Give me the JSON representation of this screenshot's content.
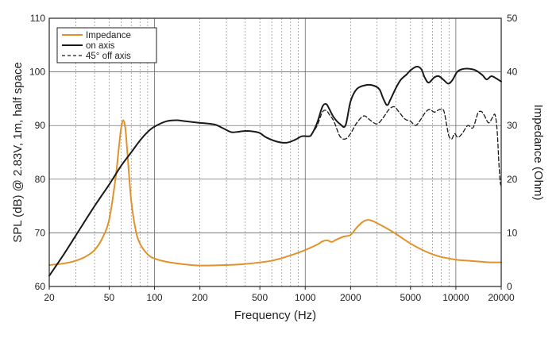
{
  "chart_data": {
    "type": "line",
    "x_scale": "log",
    "xlim": [
      20,
      20000
    ],
    "ylim_left": [
      60,
      110
    ],
    "ylim_right": [
      0,
      50
    ],
    "xlabel": "Frequency (Hz)",
    "ylabel_left": "SPL (dB) @ 2.83V, 1m, half space",
    "ylabel_right": "Impedance (Ohm)",
    "x_tick_labels": [
      "20",
      "50",
      "100",
      "200",
      "500",
      "1000",
      "2000",
      "5000",
      "10000",
      "20000"
    ],
    "y_left_tick_labels": [
      "60",
      "70",
      "80",
      "90",
      "100",
      "110"
    ],
    "y_right_tick_labels": [
      "0",
      "10",
      "20",
      "30",
      "40",
      "50"
    ],
    "grid": true,
    "legend_position": "top-left",
    "series": [
      {
        "name": "Impedance",
        "axis": "right",
        "color": "#e0922b",
        "style": "solid",
        "points": [
          [
            20,
            4.0
          ],
          [
            25,
            4.3
          ],
          [
            30,
            4.8
          ],
          [
            35,
            5.6
          ],
          [
            40,
            6.8
          ],
          [
            45,
            9.0
          ],
          [
            50,
            12.5
          ],
          [
            55,
            20.0
          ],
          [
            58,
            26.0
          ],
          [
            60,
            29.5
          ],
          [
            62,
            31.0
          ],
          [
            64,
            29.5
          ],
          [
            66,
            25.0
          ],
          [
            70,
            16.0
          ],
          [
            75,
            10.5
          ],
          [
            80,
            8.0
          ],
          [
            90,
            6.0
          ],
          [
            100,
            5.2
          ],
          [
            120,
            4.6
          ],
          [
            150,
            4.2
          ],
          [
            200,
            3.9
          ],
          [
            300,
            4.0
          ],
          [
            400,
            4.2
          ],
          [
            600,
            4.8
          ],
          [
            800,
            5.8
          ],
          [
            1000,
            6.8
          ],
          [
            1200,
            7.8
          ],
          [
            1300,
            8.4
          ],
          [
            1400,
            8.6
          ],
          [
            1500,
            8.3
          ],
          [
            1600,
            8.7
          ],
          [
            1800,
            9.3
          ],
          [
            2000,
            9.6
          ],
          [
            2200,
            11.0
          ],
          [
            2400,
            12.0
          ],
          [
            2600,
            12.4
          ],
          [
            2800,
            12.2
          ],
          [
            3000,
            11.8
          ],
          [
            3500,
            10.8
          ],
          [
            4000,
            9.8
          ],
          [
            5000,
            8.0
          ],
          [
            6000,
            6.8
          ],
          [
            7000,
            6.0
          ],
          [
            8000,
            5.5
          ],
          [
            10000,
            5.0
          ],
          [
            12000,
            4.8
          ],
          [
            15000,
            4.6
          ],
          [
            17000,
            4.5
          ],
          [
            20000,
            4.5
          ]
        ]
      },
      {
        "name": "on axis",
        "axis": "left",
        "color": "#1a1a1a",
        "style": "solid",
        "points": [
          [
            20,
            62.0
          ],
          [
            25,
            66.0
          ],
          [
            30,
            69.5
          ],
          [
            40,
            75.0
          ],
          [
            50,
            79.0
          ],
          [
            60,
            82.5
          ],
          [
            70,
            85.0
          ],
          [
            80,
            87.2
          ],
          [
            90,
            88.8
          ],
          [
            100,
            89.8
          ],
          [
            120,
            90.8
          ],
          [
            140,
            91.0
          ],
          [
            160,
            90.8
          ],
          [
            200,
            90.5
          ],
          [
            250,
            90.2
          ],
          [
            280,
            89.6
          ],
          [
            320,
            88.8
          ],
          [
            350,
            88.8
          ],
          [
            400,
            89.0
          ],
          [
            450,
            88.9
          ],
          [
            500,
            88.6
          ],
          [
            550,
            87.8
          ],
          [
            650,
            87.0
          ],
          [
            750,
            86.8
          ],
          [
            850,
            87.3
          ],
          [
            950,
            88.0
          ],
          [
            1050,
            88.0
          ],
          [
            1100,
            88.3
          ],
          [
            1200,
            90.5
          ],
          [
            1300,
            93.5
          ],
          [
            1380,
            94.0
          ],
          [
            1450,
            93.0
          ],
          [
            1550,
            91.5
          ],
          [
            1700,
            90.3
          ],
          [
            1850,
            90.0
          ],
          [
            2000,
            94.5
          ],
          [
            2200,
            96.8
          ],
          [
            2500,
            97.5
          ],
          [
            2800,
            97.5
          ],
          [
            3100,
            96.8
          ],
          [
            3300,
            95.0
          ],
          [
            3500,
            93.8
          ],
          [
            3700,
            95.0
          ],
          [
            4000,
            97.0
          ],
          [
            4300,
            98.5
          ],
          [
            4700,
            99.5
          ],
          [
            5000,
            100.3
          ],
          [
            5500,
            101.0
          ],
          [
            5900,
            100.5
          ],
          [
            6200,
            99.0
          ],
          [
            6600,
            98.0
          ],
          [
            7200,
            99.0
          ],
          [
            7700,
            99.2
          ],
          [
            8300,
            98.5
          ],
          [
            8900,
            97.8
          ],
          [
            9500,
            98.5
          ],
          [
            10200,
            100.0
          ],
          [
            11000,
            100.5
          ],
          [
            12000,
            100.6
          ],
          [
            13500,
            100.3
          ],
          [
            15000,
            99.4
          ],
          [
            16000,
            98.6
          ],
          [
            17200,
            99.2
          ],
          [
            18500,
            98.8
          ],
          [
            20000,
            98.2
          ]
        ]
      },
      {
        "name": "45° off axis",
        "axis": "left",
        "color": "#1a1a1a",
        "style": "dashed",
        "points": [
          [
            1100,
            88.3
          ],
          [
            1200,
            90.0
          ],
          [
            1300,
            92.5
          ],
          [
            1380,
            92.8
          ],
          [
            1450,
            92.0
          ],
          [
            1550,
            90.8
          ],
          [
            1700,
            88.0
          ],
          [
            1850,
            87.5
          ],
          [
            2000,
            88.5
          ],
          [
            2200,
            90.5
          ],
          [
            2450,
            91.8
          ],
          [
            2700,
            91.0
          ],
          [
            3000,
            90.3
          ],
          [
            3300,
            91.5
          ],
          [
            3600,
            93.0
          ],
          [
            3900,
            93.5
          ],
          [
            4200,
            92.5
          ],
          [
            4600,
            91.2
          ],
          [
            5000,
            90.8
          ],
          [
            5400,
            90.0
          ],
          [
            5800,
            91.0
          ],
          [
            6300,
            92.5
          ],
          [
            6700,
            93.0
          ],
          [
            7200,
            92.5
          ],
          [
            7800,
            93.0
          ],
          [
            8300,
            92.8
          ],
          [
            8700,
            90.0
          ],
          [
            9000,
            88.0
          ],
          [
            9400,
            87.5
          ],
          [
            9800,
            88.5
          ],
          [
            10300,
            87.8
          ],
          [
            11000,
            88.5
          ],
          [
            12000,
            90.0
          ],
          [
            13000,
            89.6
          ],
          [
            14000,
            92.3
          ],
          [
            14800,
            92.6
          ],
          [
            15500,
            91.8
          ],
          [
            16500,
            90.5
          ],
          [
            17500,
            91.5
          ],
          [
            18200,
            92.0
          ],
          [
            18800,
            89.0
          ],
          [
            19300,
            83.0
          ],
          [
            19700,
            79.5
          ],
          [
            20000,
            78.8
          ]
        ]
      }
    ]
  }
}
